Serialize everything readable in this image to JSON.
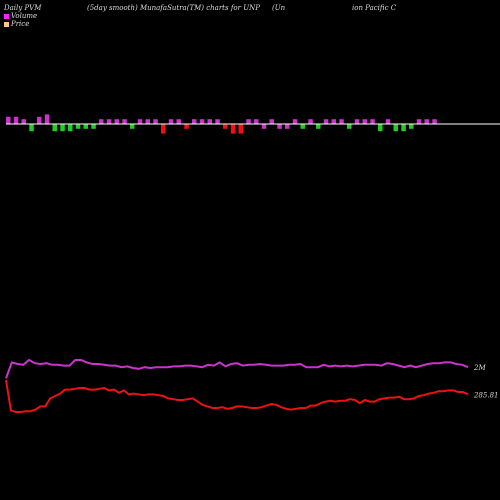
{
  "header": {
    "left": "Daily PVM",
    "middle": "(5day smooth) MunafaSutra(TM) charts for UNP",
    "right_a": "(Un",
    "right_b": "ion  Pacific C"
  },
  "legend": [
    {
      "label": "Volume",
      "color": "#ff22ff"
    },
    {
      "label": "Price",
      "color": "#f4c88a"
    }
  ],
  "colors": {
    "bar_up": "#cc33cc",
    "bar_down_green": "#22cc22",
    "bar_down_red": "#ee1111",
    "baseline": "#ffffff",
    "volume_line": "#cc33cc",
    "price_line": "#ee1111",
    "end_label": "#dddddd"
  },
  "chart_data": {
    "type": "line",
    "series": [
      {
        "name": "Volume",
        "end_label": "2M",
        "values": [
          52,
          72,
          70,
          69,
          75,
          71,
          70,
          71,
          69,
          69,
          68,
          68,
          75,
          75,
          72,
          70,
          70,
          69,
          68,
          68,
          66,
          67,
          65,
          64,
          66,
          65,
          66,
          66,
          66,
          67,
          67,
          68,
          68,
          67,
          66,
          69,
          68,
          72,
          67,
          70,
          71,
          68,
          69,
          69,
          70,
          69,
          68,
          68,
          68,
          69,
          69,
          70,
          66,
          66,
          66,
          69,
          67,
          68,
          67,
          68,
          67,
          68,
          69,
          69,
          69,
          68,
          71,
          70,
          68,
          66,
          68,
          66,
          68,
          70,
          71,
          71,
          72,
          72,
          70,
          69,
          66
        ]
      },
      {
        "name": "Price",
        "end_label": "285.81",
        "values": [
          50,
          12,
          10,
          10,
          11,
          11,
          13,
          17,
          17,
          27,
          30,
          33,
          38,
          38,
          39,
          40,
          40,
          38,
          38,
          39,
          40,
          37,
          38,
          34,
          37,
          32,
          33,
          32,
          31,
          32,
          32,
          31,
          30,
          27,
          26,
          25,
          25,
          26,
          27,
          23,
          19,
          17,
          15,
          15,
          16,
          14,
          15,
          17,
          17,
          16,
          15,
          15,
          16,
          18,
          20,
          19,
          16,
          14,
          13,
          14,
          15,
          15,
          18,
          18,
          21,
          23,
          24,
          23,
          24,
          24,
          26,
          25,
          21,
          25,
          23,
          23,
          26,
          27,
          28,
          28,
          29,
          26,
          26,
          27,
          30,
          31,
          33,
          34,
          36,
          36,
          37,
          37,
          35,
          35,
          32
        ]
      }
    ],
    "bars": [
      {
        "v": 3,
        "c": "up"
      },
      {
        "v": 3,
        "c": "up"
      },
      {
        "v": 2,
        "c": "up"
      },
      {
        "v": -3,
        "c": "green"
      },
      {
        "v": 3,
        "c": "up"
      },
      {
        "v": 4,
        "c": "up"
      },
      {
        "v": -3,
        "c": "green"
      },
      {
        "v": -3,
        "c": "green"
      },
      {
        "v": -3,
        "c": "green"
      },
      {
        "v": -2,
        "c": "green"
      },
      {
        "v": -2,
        "c": "green"
      },
      {
        "v": -2,
        "c": "green"
      },
      {
        "v": 2,
        "c": "up"
      },
      {
        "v": 2,
        "c": "up"
      },
      {
        "v": 2,
        "c": "up"
      },
      {
        "v": 2,
        "c": "up"
      },
      {
        "v": -2,
        "c": "green"
      },
      {
        "v": 2,
        "c": "up"
      },
      {
        "v": 2,
        "c": "up"
      },
      {
        "v": 2,
        "c": "up"
      },
      {
        "v": -4,
        "c": "red"
      },
      {
        "v": 2,
        "c": "up"
      },
      {
        "v": 2,
        "c": "up"
      },
      {
        "v": -2,
        "c": "red"
      },
      {
        "v": 2,
        "c": "up"
      },
      {
        "v": 2,
        "c": "up"
      },
      {
        "v": 2,
        "c": "up"
      },
      {
        "v": 2,
        "c": "up"
      },
      {
        "v": -2,
        "c": "red"
      },
      {
        "v": -4,
        "c": "red"
      },
      {
        "v": -4,
        "c": "red"
      },
      {
        "v": 2,
        "c": "up"
      },
      {
        "v": 2,
        "c": "up"
      },
      {
        "v": -2,
        "c": "up"
      },
      {
        "v": 2,
        "c": "up"
      },
      {
        "v": -2,
        "c": "up"
      },
      {
        "v": -2,
        "c": "up"
      },
      {
        "v": 2,
        "c": "up"
      },
      {
        "v": -2,
        "c": "green"
      },
      {
        "v": 2,
        "c": "up"
      },
      {
        "v": -2,
        "c": "green"
      },
      {
        "v": 2,
        "c": "up"
      },
      {
        "v": 2,
        "c": "up"
      },
      {
        "v": 2,
        "c": "up"
      },
      {
        "v": -2,
        "c": "green"
      },
      {
        "v": 2,
        "c": "up"
      },
      {
        "v": 2,
        "c": "up"
      },
      {
        "v": 2,
        "c": "up"
      },
      {
        "v": -3,
        "c": "green"
      },
      {
        "v": 2,
        "c": "up"
      },
      {
        "v": -3,
        "c": "green"
      },
      {
        "v": -3,
        "c": "green"
      },
      {
        "v": -2,
        "c": "green"
      },
      {
        "v": 2,
        "c": "up"
      },
      {
        "v": 2,
        "c": "up"
      },
      {
        "v": 2,
        "c": "up"
      }
    ],
    "bars_ylim": [
      -5,
      5
    ],
    "ylim": [
      0,
      100
    ]
  }
}
